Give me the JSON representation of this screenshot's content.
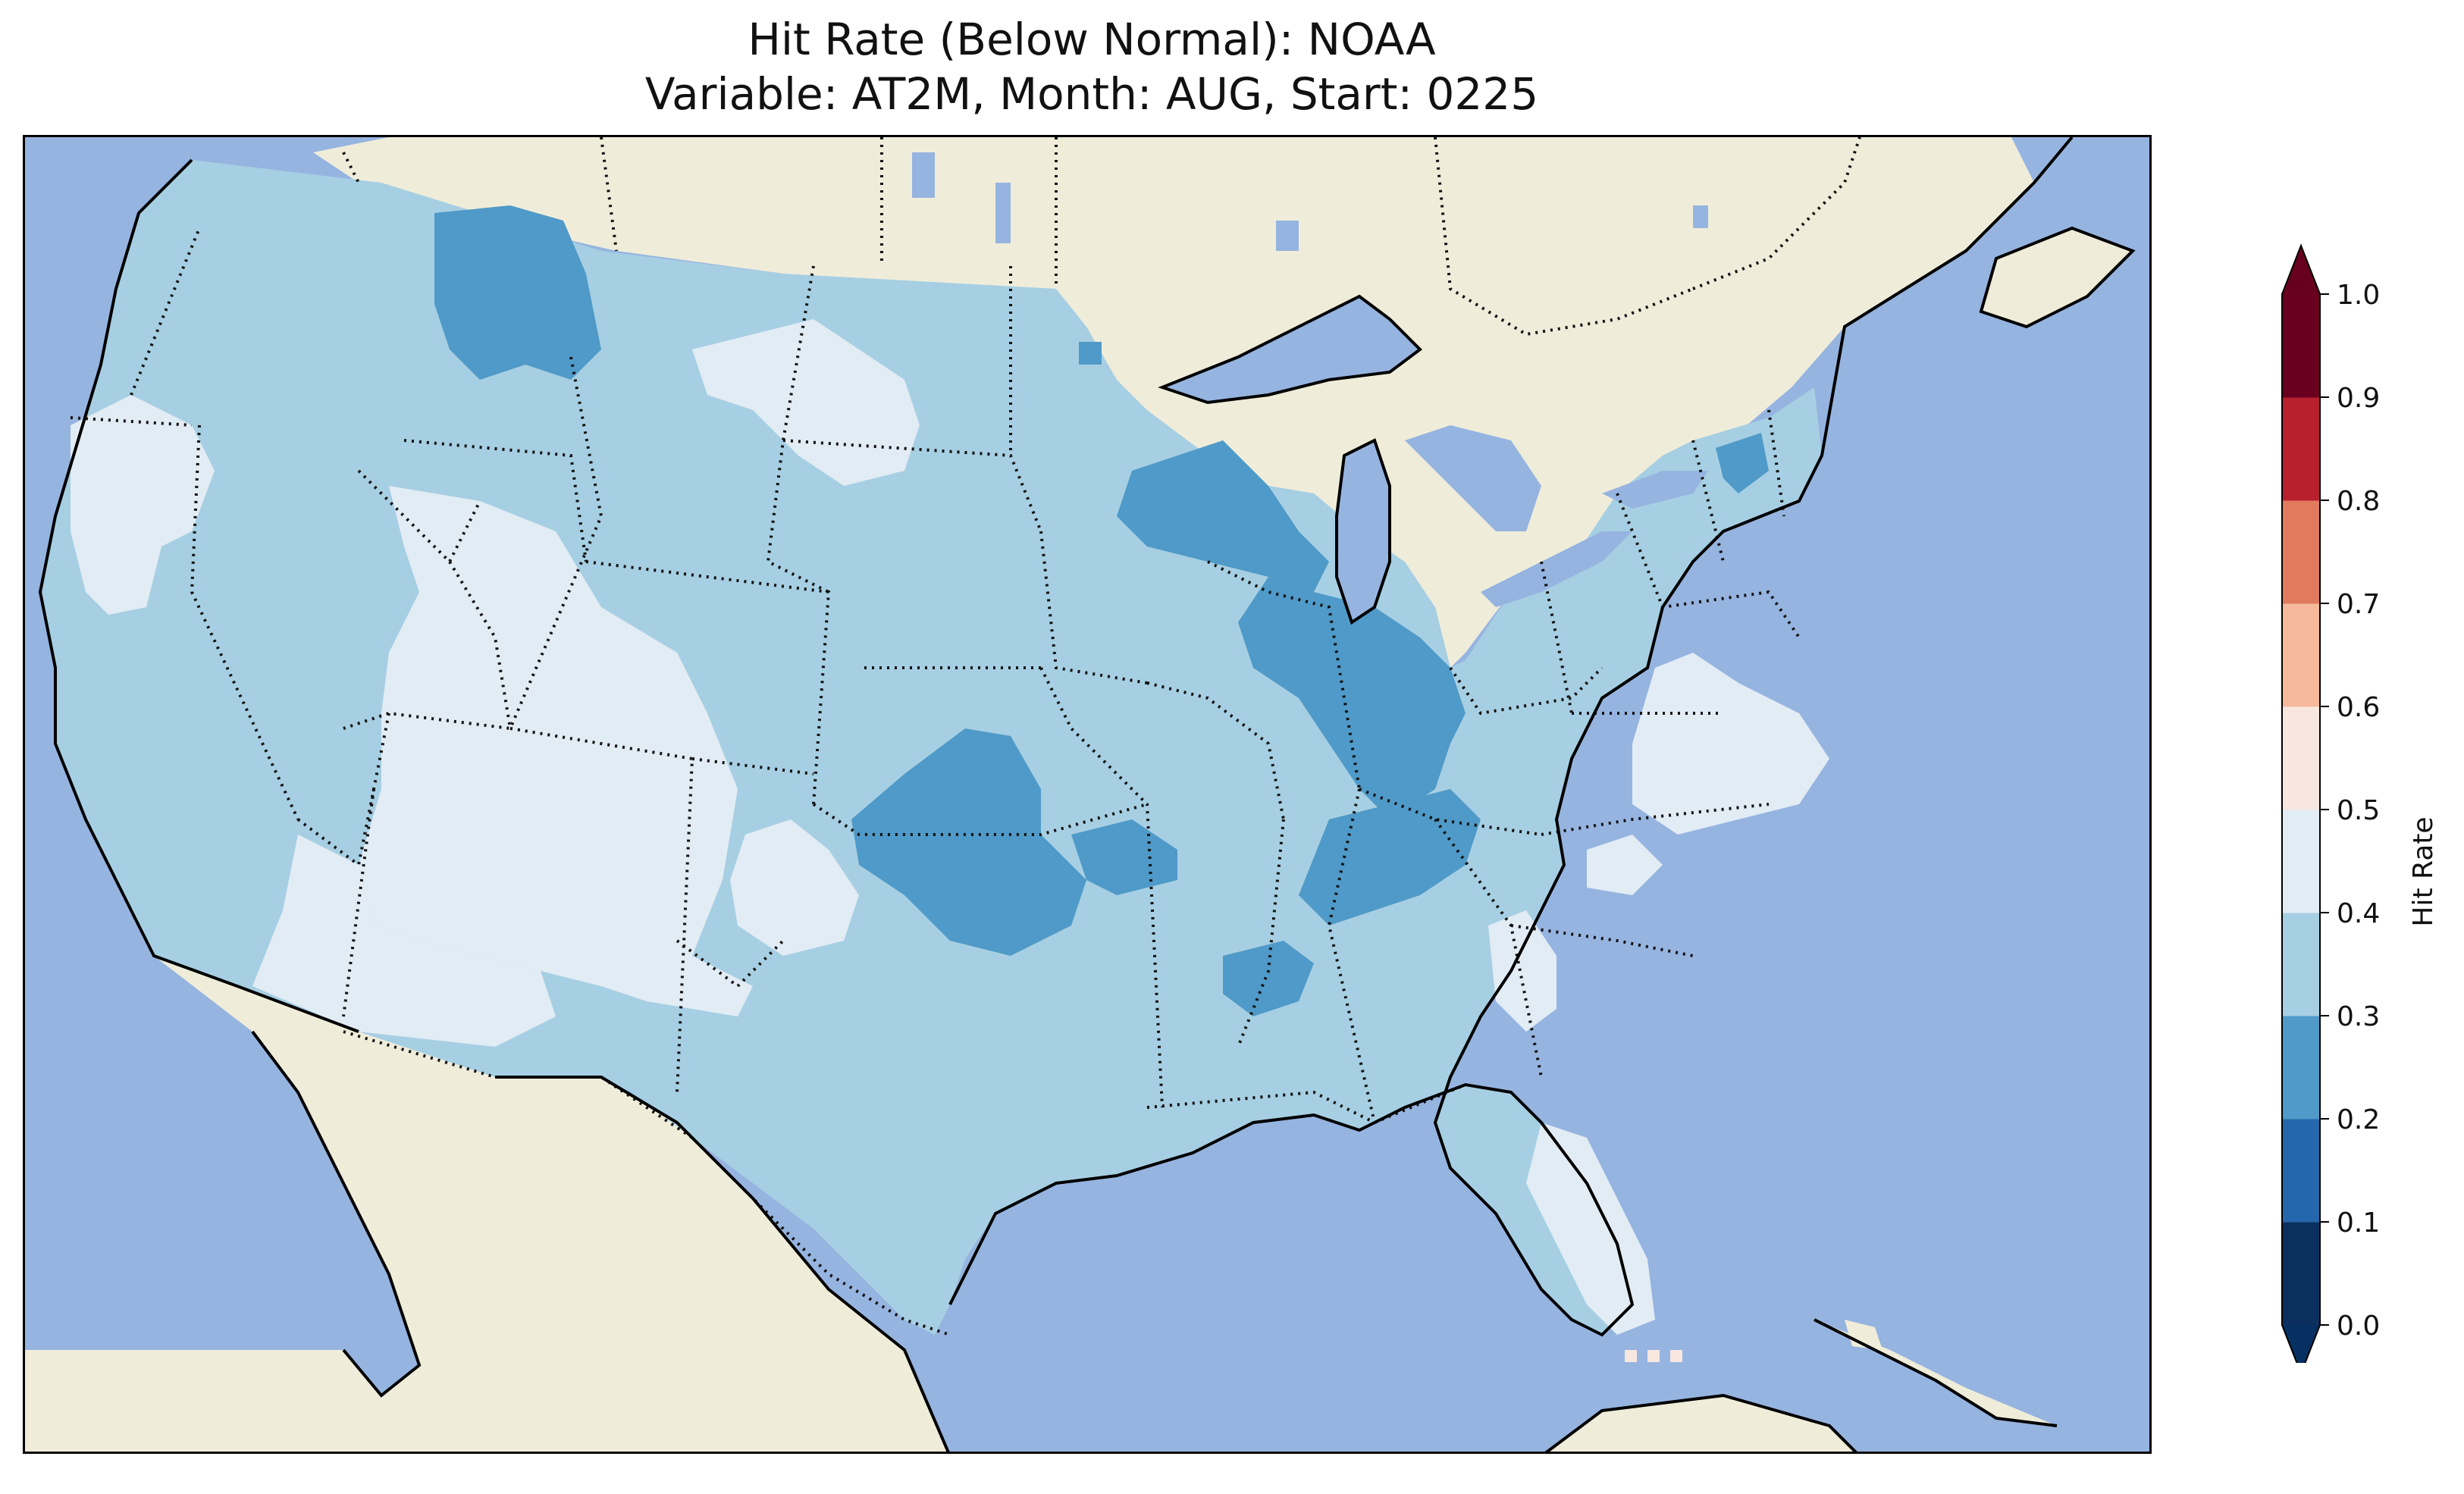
{
  "title_line1": "Hit Rate (Below Normal): NOAA",
  "title_line2": "Variable: AT2M, Month: AUG, Start: 0225",
  "map": {
    "ocean_color": "#96b4e0",
    "land_color": "#efedda",
    "lake_color": "#96b4e0"
  },
  "colorbar": {
    "label": "Hit Rate",
    "ticks": [
      "0.0",
      "0.1",
      "0.2",
      "0.3",
      "0.4",
      "0.5",
      "0.6",
      "0.7",
      "0.8",
      "0.9",
      "1.0"
    ],
    "colors": [
      "#053061",
      "#2166ac",
      "#4393c3",
      "#92c5de",
      "#d1e5f0",
      "#f7f7f7",
      "#fddbc7",
      "#f4a582",
      "#d6604d",
      "#b2182b"
    ],
    "over_color": "#67001f",
    "under_color": "#053061",
    "display_colors": [
      "#0b2f5e",
      "#2467ac",
      "#4f9ac8",
      "#a7cfe3",
      "#e2ecf4",
      "#f7e7df",
      "#f6b99b",
      "#e27a5d",
      "#b9202e",
      "#6a0020"
    ]
  },
  "regions": [
    {
      "name": "Conus base",
      "value": "0.3-0.4"
    },
    {
      "name": "Northwest Montana / Idaho",
      "value": "0.2-0.3"
    },
    {
      "name": "Upper Midwest / Wisconsin",
      "value": "0.2-0.3"
    },
    {
      "name": "Illinois / Indiana",
      "value": "0.2-0.3"
    },
    {
      "name": "Kansas / Oklahoma / Missouri",
      "value": "0.2-0.3"
    },
    {
      "name": "Kentucky / Tennessee",
      "value": "0.2-0.3"
    },
    {
      "name": "Memphis area",
      "value": "0.2-0.3"
    },
    {
      "name": "Northern New York",
      "value": "0.2-0.3"
    },
    {
      "name": "Northern California / Oregon",
      "value": "0.4-0.5"
    },
    {
      "name": "Great Basin / Four Corners",
      "value": "0.4-0.5"
    },
    {
      "name": "Western South Dakota / Montana",
      "value": "0.4-0.5"
    },
    {
      "name": "Texas panhandle",
      "value": "0.4-0.5"
    },
    {
      "name": "Virginia / North Carolina",
      "value": "0.4-0.5"
    },
    {
      "name": "Georgia",
      "value": "0.4-0.5"
    },
    {
      "name": "Florida peninsula",
      "value": "0.4-0.5"
    }
  ]
}
